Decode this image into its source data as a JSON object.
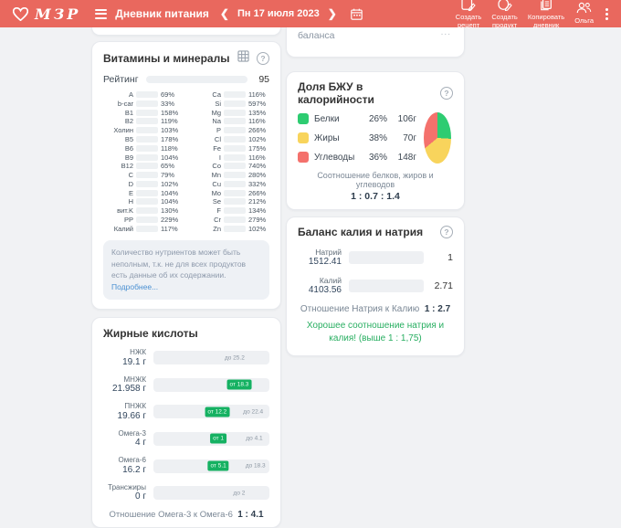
{
  "colors": {
    "header": "#e9685e",
    "green": "#2bcb77",
    "dark_green_marker": "#15b162",
    "yellow": "#f0d328",
    "blue": "#3fa3e5",
    "purple": "#8d63ae",
    "pie_green": "#2ecc71",
    "pie_yellow": "#f8d45c",
    "pie_red": "#f4716c",
    "success_text": "#27ae60"
  },
  "icons": {
    "logo": "heart-icon",
    "menu": "hamburger-icon",
    "prev": "chevron-left-icon",
    "next": "chevron-right-icon",
    "calendar": "calendar-icon",
    "create_recipe": "recipe-icon",
    "create_product": "product-icon",
    "copy_diary": "copy-icon",
    "user": "user-icon",
    "more": "kebab-icon",
    "table": "table-icon",
    "help": "question-icon"
  },
  "header": {
    "logo_text": "МЗР",
    "title": "Дневник питания",
    "prev": "❮",
    "next": "❯",
    "date": "Пн 17 июля 2023",
    "actions": [
      {
        "line1": "Создать",
        "line2": "рецепт"
      },
      {
        "line1": "Создать",
        "line2": "продукт"
      },
      {
        "line1": "Копировать",
        "line2": "дневник"
      },
      {
        "line1": "Ольга",
        "line2": ""
      }
    ]
  },
  "partial_card": {
    "text": "баланса",
    "dots": "..."
  },
  "vitamins": {
    "title": "Витамины и минералы",
    "rating_label": "Рейтинг",
    "rating_value": "95",
    "rating_fill": "95%",
    "left": [
      {
        "n": "A",
        "p": "69%",
        "f": "69%",
        "c": "#f0d328"
      },
      {
        "n": "b-car",
        "p": "33%",
        "f": "33%",
        "c": "#f0d328"
      },
      {
        "n": "B1",
        "p": "158%",
        "f": "100%",
        "c": "#f0d328"
      },
      {
        "n": "B2",
        "p": "119%",
        "f": "100%",
        "c": "#f0d328"
      },
      {
        "n": "Холин",
        "p": "103%",
        "f": "100%",
        "c": "#f0d328"
      },
      {
        "n": "B5",
        "p": "178%",
        "f": "100%",
        "c": "#f0d328"
      },
      {
        "n": "B6",
        "p": "118%",
        "f": "100%",
        "c": "#f0d328"
      },
      {
        "n": "B9",
        "p": "104%",
        "f": "100%",
        "c": "#f0d328"
      },
      {
        "n": "B12",
        "p": "65%",
        "f": "65%",
        "c": "#f0d328"
      },
      {
        "n": "C",
        "p": "79%",
        "f": "79%",
        "c": "#f0d328"
      },
      {
        "n": "D",
        "p": "102%",
        "f": "100%",
        "c": "#f0d328"
      },
      {
        "n": "E",
        "p": "104%",
        "f": "100%",
        "c": "#f0d328"
      },
      {
        "n": "H",
        "p": "104%",
        "f": "100%",
        "c": "#f0d328"
      },
      {
        "n": "вит.K",
        "p": "130%",
        "f": "100%",
        "c": "#f0d328"
      },
      {
        "n": "PP",
        "p": "229%",
        "f": "100%",
        "c": "#f0d328"
      },
      {
        "n": "Калий",
        "p": "117%",
        "f": "100%",
        "c": "#3fa3e5"
      }
    ],
    "right": [
      {
        "n": "Ca",
        "p": "116%",
        "f": "100%",
        "c": "#3fa3e5"
      },
      {
        "n": "Si",
        "p": "597%",
        "f": "100%",
        "c": "#8d63ae"
      },
      {
        "n": "Mg",
        "p": "135%",
        "f": "100%",
        "c": "#3fa3e5"
      },
      {
        "n": "Na",
        "p": "116%",
        "f": "100%",
        "c": "#3fa3e5"
      },
      {
        "n": "P",
        "p": "266%",
        "f": "100%",
        "c": "#3fa3e5"
      },
      {
        "n": "Cl",
        "p": "102%",
        "f": "100%",
        "c": "#3fa3e5"
      },
      {
        "n": "Fe",
        "p": "175%",
        "f": "100%",
        "c": "#8d63ae"
      },
      {
        "n": "I",
        "p": "116%",
        "f": "100%",
        "c": "#8d63ae"
      },
      {
        "n": "Co",
        "p": "740%",
        "f": "100%",
        "c": "#8d63ae"
      },
      {
        "n": "Mn",
        "p": "280%",
        "f": "100%",
        "c": "#8d63ae"
      },
      {
        "n": "Cu",
        "p": "332%",
        "f": "100%",
        "c": "#8d63ae"
      },
      {
        "n": "Mo",
        "p": "266%",
        "f": "100%",
        "c": "#8d63ae"
      },
      {
        "n": "Se",
        "p": "212%",
        "f": "100%",
        "c": "#8d63ae"
      },
      {
        "n": "F",
        "p": "134%",
        "f": "100%",
        "c": "#8d63ae"
      },
      {
        "n": "Cr",
        "p": "279%",
        "f": "100%",
        "c": "#8d63ae"
      },
      {
        "n": "Zn",
        "p": "102%",
        "f": "100%",
        "c": "#8d63ae"
      }
    ],
    "note": "Количество нутриентов может быть неполным, т.к. не для всех продуктов есть данные об их содержании. ",
    "note_link": "Подробнее..."
  },
  "fatty": {
    "title": "Жирные кислоты",
    "rows": [
      {
        "name": "НЖК",
        "value": "19.1 г",
        "fill": "59%",
        "markers": [
          {
            "text": "до 25.2",
            "type": "gray",
            "pos": 70
          }
        ]
      },
      {
        "name": "МНЖК",
        "value": "21.958 г",
        "fill": "100%",
        "markers": [
          {
            "text": "от 18.3",
            "type": "dark",
            "pos": 74
          }
        ]
      },
      {
        "name": "ПНЖК",
        "value": "19.66 г",
        "fill": "75%",
        "markers": [
          {
            "text": "от 12.2",
            "type": "dark",
            "pos": 55
          },
          {
            "text": "до 22.4",
            "type": "gray",
            "pos": 86
          }
        ]
      },
      {
        "name": "Омега-3",
        "value": "4 г",
        "fill": "77%",
        "markers": [
          {
            "text": "от 1",
            "type": "dark",
            "pos": 56
          },
          {
            "text": "до 4.1",
            "type": "gray",
            "pos": 87
          }
        ]
      },
      {
        "name": "Омега-6",
        "value": "16.2 г",
        "fill": "77%",
        "markers": [
          {
            "text": "от 5.1",
            "type": "dark",
            "pos": 56
          },
          {
            "text": "до 18.3",
            "type": "gray",
            "pos": 88
          }
        ]
      },
      {
        "name": "Трансжиры",
        "value": "0 г",
        "fill": "0%",
        "markers": [
          {
            "text": "до 2",
            "type": "gray",
            "pos": 74
          }
        ]
      }
    ],
    "ratio_label": "Отношение Омега-3 к Омега-6",
    "ratio_value": "1 : 4.1"
  },
  "bju": {
    "title": "Доля БЖУ в калорийности",
    "legend": [
      {
        "label": "Белки",
        "pct": "26%",
        "grams": "106г",
        "color": "#2ecc71"
      },
      {
        "label": "Жиры",
        "pct": "38%",
        "grams": "70г",
        "color": "#f8d45c"
      },
      {
        "label": "Углеводы",
        "pct": "36%",
        "grams": "148г",
        "color": "#f4716c"
      }
    ],
    "caption": "Соотношение белков, жиров и углеводов",
    "ratio": "1 : 0.7 : 1.4"
  },
  "balance": {
    "title": "Баланс калия и натрия",
    "rows": [
      {
        "name": "Натрий",
        "value": "1512.41",
        "fill": "37%",
        "num": "1"
      },
      {
        "name": "Калий",
        "value": "4103.56",
        "fill": "100%",
        "num": "2.71"
      }
    ],
    "ratio_label": "Отношение Натрия к Калию",
    "ratio_value": "1 : 2.7",
    "good_text": "Хорошее соотношение натрия и калия! (выше 1 : 1,75)"
  },
  "chart_data": {
    "type": "pie",
    "title": "Доля БЖУ в калорийности",
    "labels": [
      "Белки",
      "Жиры",
      "Углеводы"
    ],
    "values_percent": [
      26,
      38,
      36
    ],
    "values_grams": [
      106,
      70,
      148
    ],
    "colors": [
      "#2ecc71",
      "#f8d45c",
      "#f4716c"
    ],
    "legend_position": "left",
    "annotation": "Соотношение белков, жиров и углеводов 1 : 0.7 : 1.4"
  }
}
